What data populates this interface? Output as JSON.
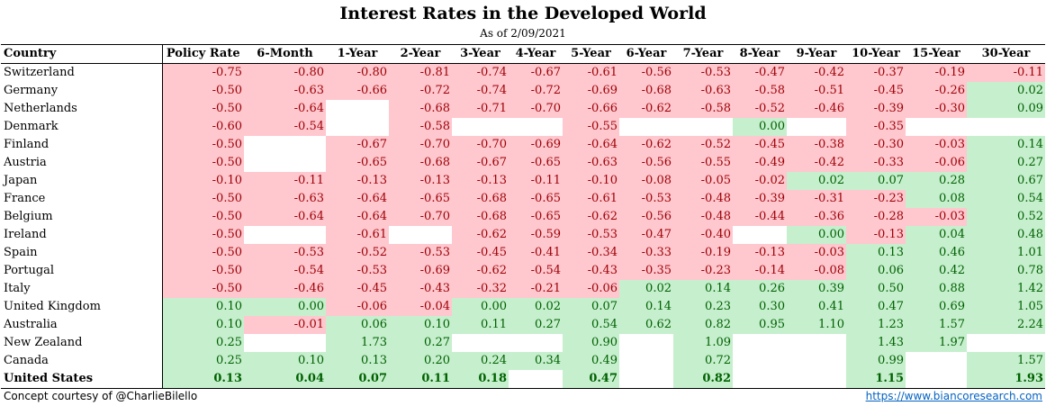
{
  "chart_data": {
    "type": "table",
    "title": "Interest Rates in the Developed World",
    "subtitle": "As of 2/09/2021",
    "columns": [
      "Country",
      "Policy Rate",
      "6-Month",
      "1-Year",
      "2-Year",
      "3-Year",
      "4-Year",
      "5-Year",
      "6-Year",
      "7-Year",
      "8-Year",
      "9-Year",
      "10-Year",
      "15-Year",
      "30-Year"
    ],
    "rows": [
      {
        "country": "Switzerland",
        "values": [
          "-0.75",
          "-0.80",
          "-0.80",
          "-0.81",
          "-0.74",
          "-0.67",
          "-0.61",
          "-0.56",
          "-0.53",
          "-0.47",
          "-0.42",
          "-0.37",
          "-0.19",
          "-0.11"
        ]
      },
      {
        "country": "Germany",
        "values": [
          "-0.50",
          "-0.63",
          "-0.66",
          "-0.72",
          "-0.74",
          "-0.72",
          "-0.69",
          "-0.68",
          "-0.63",
          "-0.58",
          "-0.51",
          "-0.45",
          "-0.26",
          "0.02"
        ]
      },
      {
        "country": "Netherlands",
        "values": [
          "-0.50",
          "-0.64",
          null,
          "-0.68",
          "-0.71",
          "-0.70",
          "-0.66",
          "-0.62",
          "-0.58",
          "-0.52",
          "-0.46",
          "-0.39",
          "-0.30",
          "0.09"
        ]
      },
      {
        "country": "Denmark",
        "values": [
          "-0.60",
          "-0.54",
          null,
          "-0.58",
          null,
          null,
          "-0.55",
          null,
          null,
          "0.00",
          null,
          "-0.35",
          null,
          null
        ]
      },
      {
        "country": "Finland",
        "values": [
          "-0.50",
          null,
          "-0.67",
          "-0.70",
          "-0.70",
          "-0.69",
          "-0.64",
          "-0.62",
          "-0.52",
          "-0.45",
          "-0.38",
          "-0.30",
          "-0.03",
          "0.14"
        ]
      },
      {
        "country": "Austria",
        "values": [
          "-0.50",
          null,
          "-0.65",
          "-0.68",
          "-0.67",
          "-0.65",
          "-0.63",
          "-0.56",
          "-0.55",
          "-0.49",
          "-0.42",
          "-0.33",
          "-0.06",
          "0.27"
        ]
      },
      {
        "country": "Japan",
        "values": [
          "-0.10",
          "-0.11",
          "-0.13",
          "-0.13",
          "-0.13",
          "-0.11",
          "-0.10",
          "-0.08",
          "-0.05",
          "-0.02",
          "0.02",
          "0.07",
          "0.28",
          "0.67"
        ]
      },
      {
        "country": "France",
        "values": [
          "-0.50",
          "-0.63",
          "-0.64",
          "-0.65",
          "-0.68",
          "-0.65",
          "-0.61",
          "-0.53",
          "-0.48",
          "-0.39",
          "-0.31",
          "-0.23",
          "0.08",
          "0.54"
        ]
      },
      {
        "country": "Belgium",
        "values": [
          "-0.50",
          "-0.64",
          "-0.64",
          "-0.70",
          "-0.68",
          "-0.65",
          "-0.62",
          "-0.56",
          "-0.48",
          "-0.44",
          "-0.36",
          "-0.28",
          "-0.03",
          "0.52"
        ]
      },
      {
        "country": "Ireland",
        "values": [
          "-0.50",
          null,
          "-0.61",
          null,
          "-0.62",
          "-0.59",
          "-0.53",
          "-0.47",
          "-0.40",
          null,
          "0.00",
          "-0.13",
          "0.04",
          "0.48"
        ]
      },
      {
        "country": "Spain",
        "values": [
          "-0.50",
          "-0.53",
          "-0.52",
          "-0.53",
          "-0.45",
          "-0.41",
          "-0.34",
          "-0.33",
          "-0.19",
          "-0.13",
          "-0.03",
          "0.13",
          "0.46",
          "1.01"
        ]
      },
      {
        "country": "Portugal",
        "values": [
          "-0.50",
          "-0.54",
          "-0.53",
          "-0.69",
          "-0.62",
          "-0.54",
          "-0.43",
          "-0.35",
          "-0.23",
          "-0.14",
          "-0.08",
          "0.06",
          "0.42",
          "0.78"
        ]
      },
      {
        "country": "Italy",
        "values": [
          "-0.50",
          "-0.46",
          "-0.45",
          "-0.43",
          "-0.32",
          "-0.21",
          "-0.06",
          "0.02",
          "0.14",
          "0.26",
          "0.39",
          "0.50",
          "0.88",
          "1.42"
        ]
      },
      {
        "country": "United Kingdom",
        "values": [
          "0.10",
          "0.00",
          "-0.06",
          "-0.04",
          "0.00",
          "0.02",
          "0.07",
          "0.14",
          "0.23",
          "0.30",
          "0.41",
          "0.47",
          "0.69",
          "1.05"
        ]
      },
      {
        "country": "Australia",
        "values": [
          "0.10",
          "-0.01",
          "0.06",
          "0.10",
          "0.11",
          "0.27",
          "0.54",
          "0.62",
          "0.82",
          "0.95",
          "1.10",
          "1.23",
          "1.57",
          "2.24"
        ]
      },
      {
        "country": "New Zealand",
        "values": [
          "0.25",
          null,
          "1.73",
          "0.27",
          null,
          null,
          "0.90",
          null,
          "1.09",
          null,
          null,
          "1.43",
          "1.97",
          null
        ]
      },
      {
        "country": "Canada",
        "values": [
          "0.25",
          "0.10",
          "0.13",
          "0.20",
          "0.24",
          "0.34",
          "0.49",
          null,
          "0.72",
          null,
          null,
          "0.99",
          null,
          "1.57"
        ]
      },
      {
        "country": "United States",
        "values": [
          "0.13",
          "0.04",
          "0.07",
          "0.11",
          "0.18",
          null,
          "0.47",
          null,
          "0.82",
          null,
          null,
          "1.15",
          null,
          "1.93"
        ]
      }
    ],
    "colors": {
      "negative_fill": "#ffc7ce",
      "negative_text": "#9c0006",
      "positive_fill": "#c6efce",
      "positive_text": "#006100"
    }
  },
  "footer": {
    "credit": "Concept courtesy of @CharlieBilello",
    "url": "https://www.biancoresearch.com"
  }
}
